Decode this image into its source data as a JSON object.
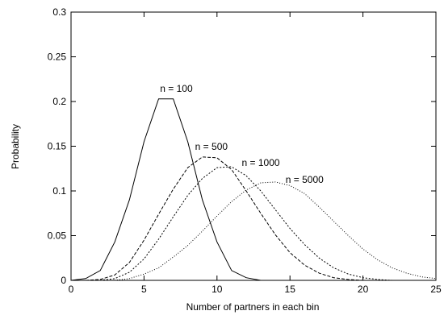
{
  "chart_data": {
    "type": "line",
    "xlabel": "Number of partners in each bin",
    "ylabel": "Probability",
    "xlim": [
      0,
      25
    ],
    "ylim": [
      0,
      0.3
    ],
    "xticks": [
      0,
      5,
      10,
      15,
      20,
      25
    ],
    "yticks": [
      0,
      0.05,
      0.1,
      0.15,
      0.2,
      0.25,
      0.3
    ],
    "grid": false,
    "series": [
      {
        "name": "n = 100",
        "style": "solid",
        "x": [
          0,
          1,
          2,
          3,
          4,
          5,
          6,
          7,
          8,
          9,
          10,
          11,
          12,
          13,
          14,
          15,
          16
        ],
        "y": [
          0,
          0.002,
          0.011,
          0.043,
          0.09,
          0.155,
          0.203,
          0.203,
          0.155,
          0.09,
          0.043,
          0.011,
          0.003,
          0,
          0,
          0,
          0
        ]
      },
      {
        "name": "n = 500",
        "style": "dashed",
        "x": [
          0,
          1,
          2,
          3,
          4,
          5,
          6,
          7,
          8,
          9,
          10,
          11,
          12,
          13,
          14,
          15,
          16,
          17,
          18,
          19,
          20,
          21
        ],
        "y": [
          0,
          0,
          0.001,
          0.006,
          0.02,
          0.045,
          0.074,
          0.102,
          0.126,
          0.138,
          0.137,
          0.124,
          0.1,
          0.075,
          0.051,
          0.031,
          0.017,
          0.008,
          0.003,
          0.001,
          0,
          0
        ]
      },
      {
        "name": "n = 1000",
        "style": "dotted-dense",
        "x": [
          0,
          1,
          2,
          3,
          4,
          5,
          6,
          7,
          8,
          9,
          10,
          11,
          12,
          13,
          14,
          15,
          16,
          17,
          18,
          19,
          20,
          21,
          22
        ],
        "y": [
          0,
          0,
          0,
          0.002,
          0.009,
          0.024,
          0.046,
          0.071,
          0.095,
          0.114,
          0.126,
          0.127,
          0.117,
          0.1,
          0.079,
          0.058,
          0.04,
          0.025,
          0.014,
          0.007,
          0.003,
          0.001,
          0
        ]
      },
      {
        "name": "n = 5000",
        "style": "dotted",
        "x": [
          0,
          1,
          2,
          3,
          4,
          5,
          6,
          7,
          8,
          9,
          10,
          11,
          12,
          13,
          14,
          15,
          16,
          17,
          18,
          19,
          20,
          21,
          22,
          23,
          24,
          25
        ],
        "y": [
          0,
          0,
          0,
          0,
          0.002,
          0.007,
          0.014,
          0.026,
          0.039,
          0.055,
          0.072,
          0.088,
          0.101,
          0.109,
          0.11,
          0.106,
          0.097,
          0.082,
          0.066,
          0.05,
          0.035,
          0.023,
          0.014,
          0.008,
          0.004,
          0.002
        ]
      }
    ],
    "annotations": [
      {
        "text": "n = 100",
        "x": 6.1,
        "y": 0.211
      },
      {
        "text": "n = 500",
        "x": 8.5,
        "y": 0.146
      },
      {
        "text": "n = 1000",
        "x": 11.7,
        "y": 0.128
      },
      {
        "text": "n = 5000",
        "x": 14.7,
        "y": 0.109
      }
    ]
  }
}
